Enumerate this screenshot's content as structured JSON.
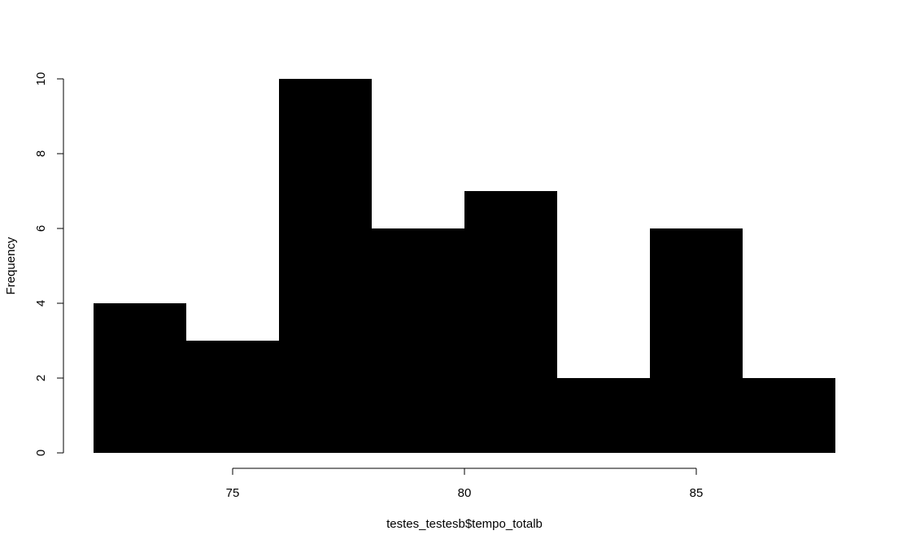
{
  "chart_data": {
    "type": "bar",
    "subtype": "histogram",
    "xlabel": "testes_testesb$tempo_totalb",
    "ylabel": "Frequency",
    "bins": [
      {
        "start": 72,
        "end": 74,
        "count": 4
      },
      {
        "start": 74,
        "end": 76,
        "count": 3
      },
      {
        "start": 76,
        "end": 78,
        "count": 10
      },
      {
        "start": 78,
        "end": 80,
        "count": 6
      },
      {
        "start": 80,
        "end": 82,
        "count": 7
      },
      {
        "start": 82,
        "end": 84,
        "count": 2
      },
      {
        "start": 84,
        "end": 86,
        "count": 6
      },
      {
        "start": 86,
        "end": 88,
        "count": 2
      }
    ],
    "xlim": [
      72,
      88
    ],
    "ylim": [
      0,
      10
    ],
    "x_ticks": [
      75,
      80,
      85
    ],
    "y_ticks": [
      0,
      2,
      4,
      6,
      8,
      10
    ],
    "bar_color": "#000000",
    "grid": false,
    "legend": "none"
  }
}
